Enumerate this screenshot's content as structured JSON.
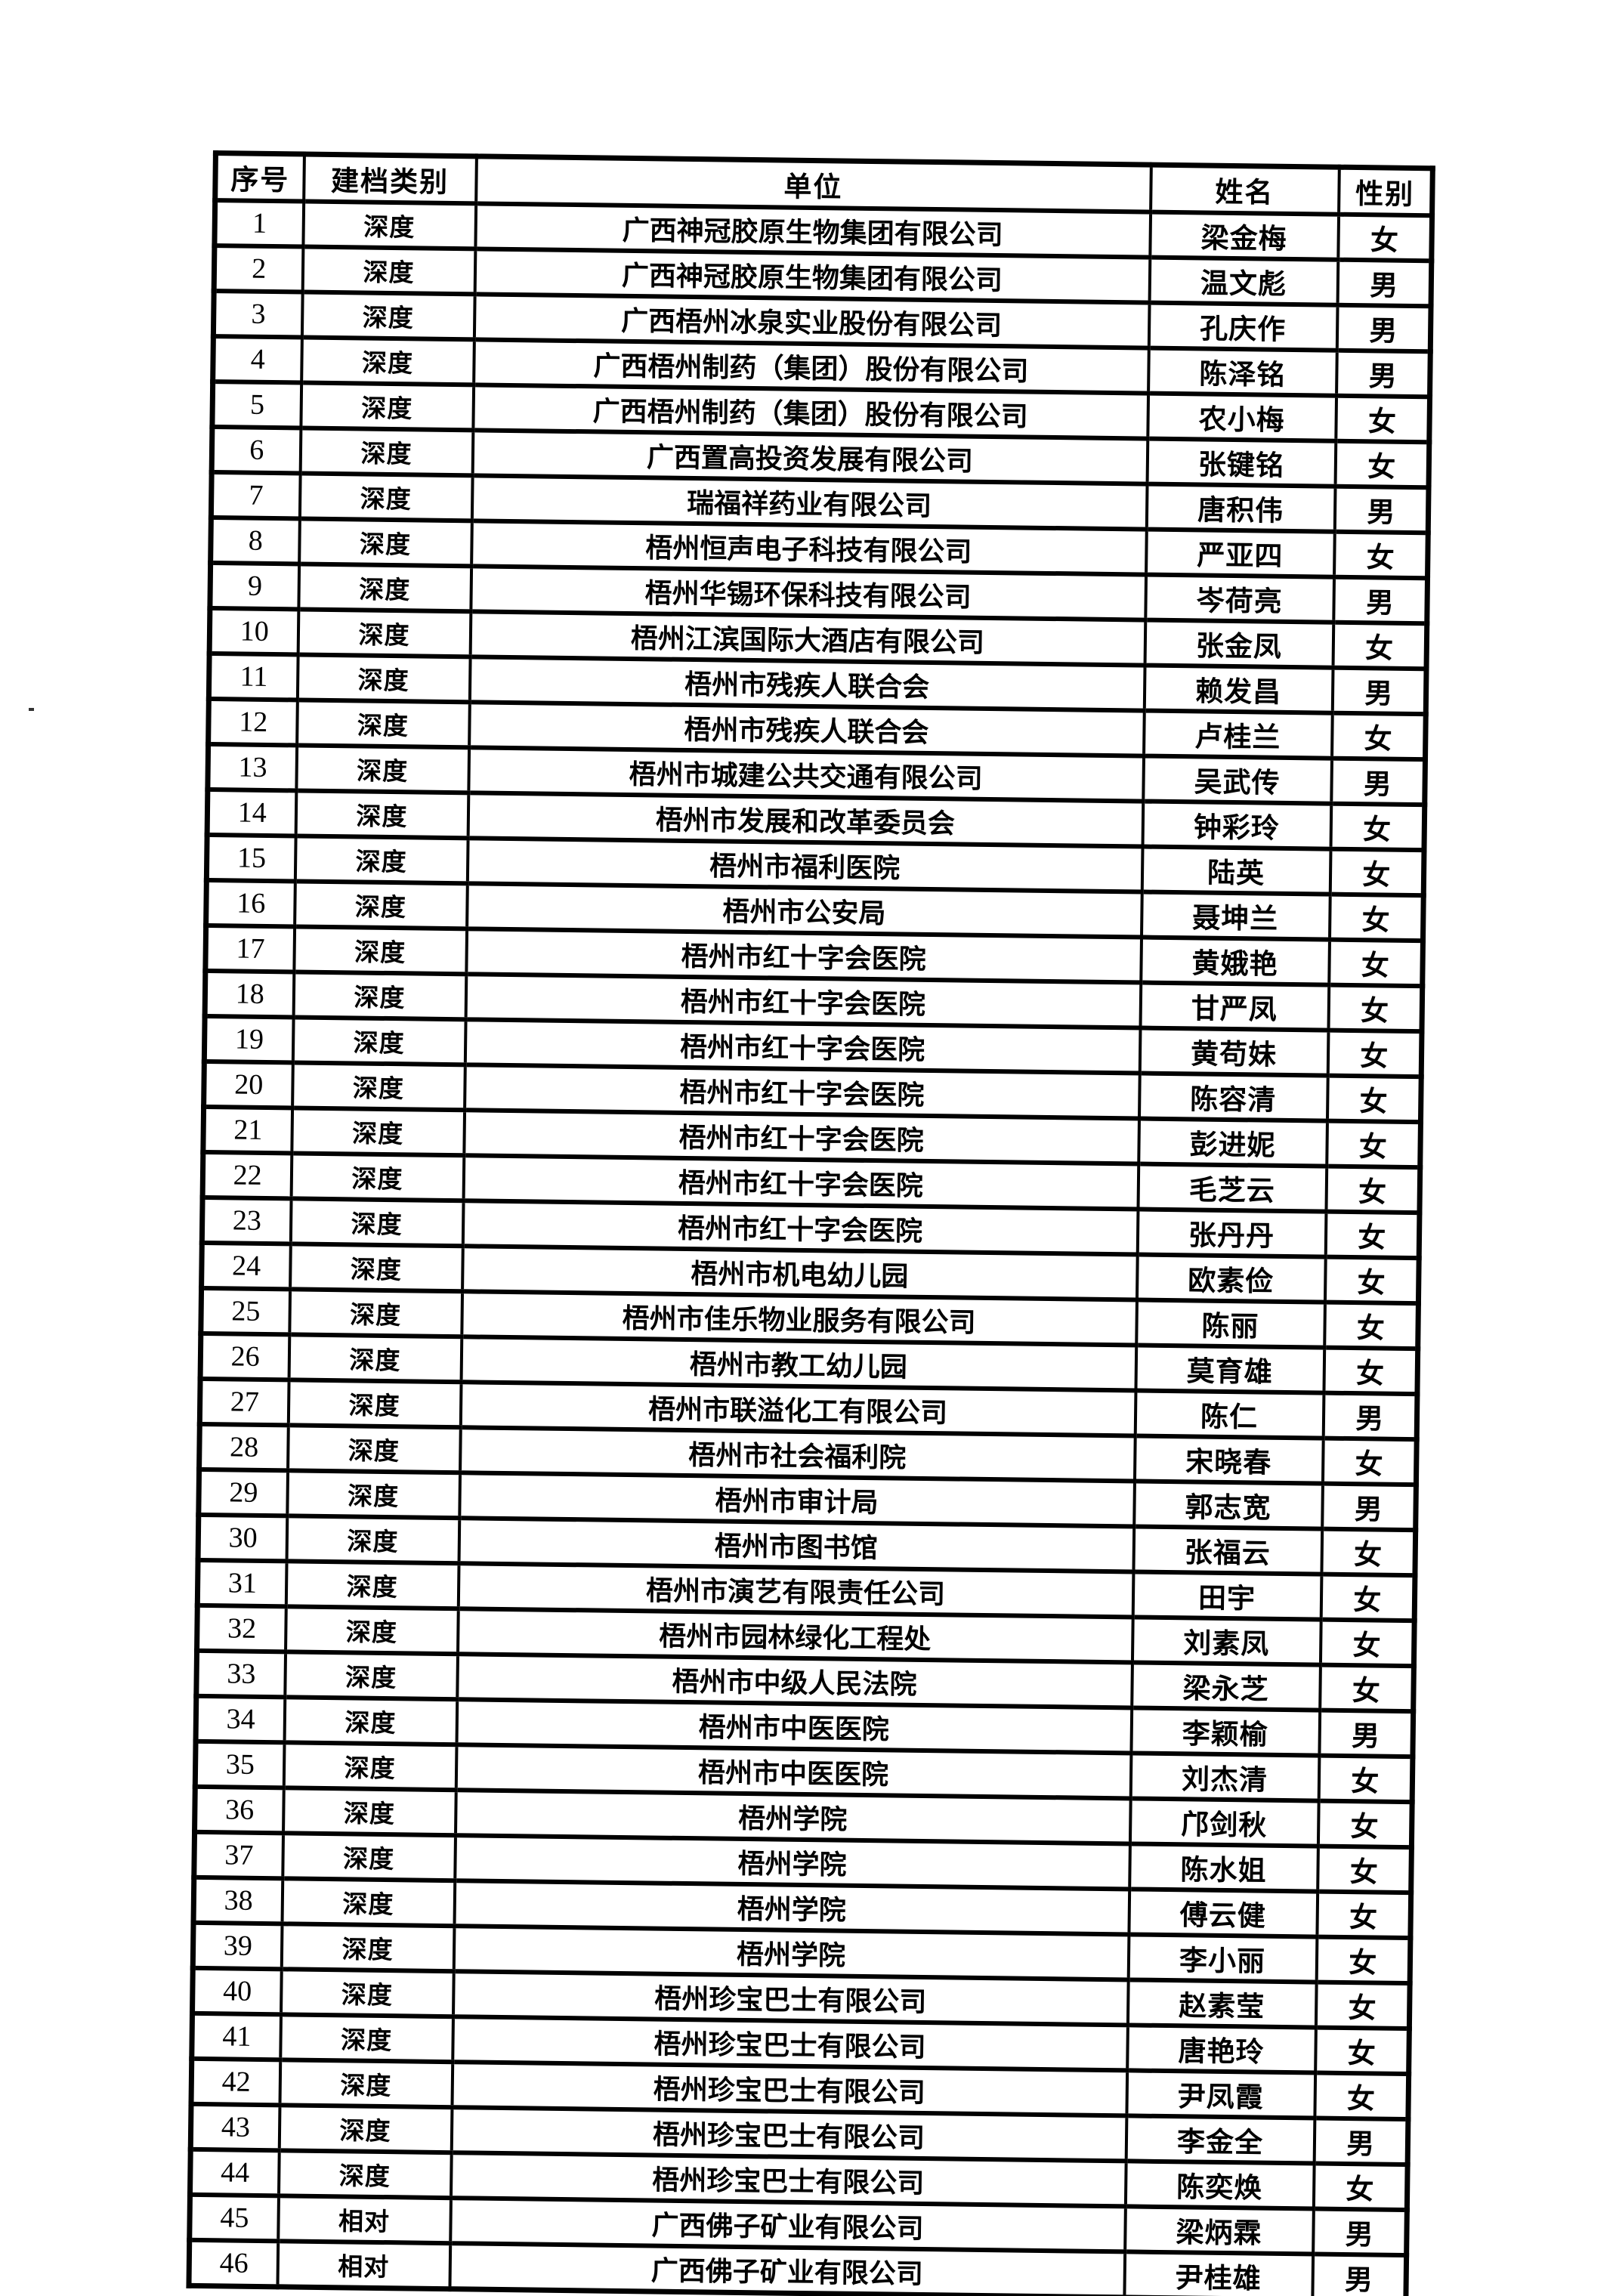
{
  "page": {
    "background": "#ffffff",
    "ink": "#000000"
  },
  "table": {
    "headers": [
      "序号",
      "建档类别",
      "单位",
      "姓名",
      "性别"
    ],
    "rows": [
      [
        "1",
        "深度",
        "广西神冠胶原生物集团有限公司",
        "梁金梅",
        "女"
      ],
      [
        "2",
        "深度",
        "广西神冠胶原生物集团有限公司",
        "温文彪",
        "男"
      ],
      [
        "3",
        "深度",
        "广西梧州冰泉实业股份有限公司",
        "孔庆作",
        "男"
      ],
      [
        "4",
        "深度",
        "广西梧州制药（集团）股份有限公司",
        "陈泽铭",
        "男"
      ],
      [
        "5",
        "深度",
        "广西梧州制药（集团）股份有限公司",
        "农小梅",
        "女"
      ],
      [
        "6",
        "深度",
        "广西置高投资发展有限公司",
        "张键铭",
        "女"
      ],
      [
        "7",
        "深度",
        "瑞福祥药业有限公司",
        "唐积伟",
        "男"
      ],
      [
        "8",
        "深度",
        "梧州恒声电子科技有限公司",
        "严亚四",
        "女"
      ],
      [
        "9",
        "深度",
        "梧州华锡环保科技有限公司",
        "岑荷亮",
        "男"
      ],
      [
        "10",
        "深度",
        "梧州江滨国际大酒店有限公司",
        "张金凤",
        "女"
      ],
      [
        "11",
        "深度",
        "梧州市残疾人联合会",
        "赖发昌",
        "男"
      ],
      [
        "12",
        "深度",
        "梧州市残疾人联合会",
        "卢桂兰",
        "女"
      ],
      [
        "13",
        "深度",
        "梧州市城建公共交通有限公司",
        "吴武传",
        "男"
      ],
      [
        "14",
        "深度",
        "梧州市发展和改革委员会",
        "钟彩玲",
        "女"
      ],
      [
        "15",
        "深度",
        "梧州市福利医院",
        "陆英",
        "女"
      ],
      [
        "16",
        "深度",
        "梧州市公安局",
        "聂坤兰",
        "女"
      ],
      [
        "17",
        "深度",
        "梧州市红十字会医院",
        "黄娥艳",
        "女"
      ],
      [
        "18",
        "深度",
        "梧州市红十字会医院",
        "甘严凤",
        "女"
      ],
      [
        "19",
        "深度",
        "梧州市红十字会医院",
        "黄苟妹",
        "女"
      ],
      [
        "20",
        "深度",
        "梧州市红十字会医院",
        "陈容清",
        "女"
      ],
      [
        "21",
        "深度",
        "梧州市红十字会医院",
        "彭进妮",
        "女"
      ],
      [
        "22",
        "深度",
        "梧州市红十字会医院",
        "毛芝云",
        "女"
      ],
      [
        "23",
        "深度",
        "梧州市红十字会医院",
        "张丹丹",
        "女"
      ],
      [
        "24",
        "深度",
        "梧州市机电幼儿园",
        "欧素俭",
        "女"
      ],
      [
        "25",
        "深度",
        "梧州市佳乐物业服务有限公司",
        "陈丽",
        "女"
      ],
      [
        "26",
        "深度",
        "梧州市教工幼儿园",
        "莫育雄",
        "女"
      ],
      [
        "27",
        "深度",
        "梧州市联溢化工有限公司",
        "陈仁",
        "男"
      ],
      [
        "28",
        "深度",
        "梧州市社会福利院",
        "宋晓春",
        "女"
      ],
      [
        "29",
        "深度",
        "梧州市审计局",
        "郭志宽",
        "男"
      ],
      [
        "30",
        "深度",
        "梧州市图书馆",
        "张福云",
        "女"
      ],
      [
        "31",
        "深度",
        "梧州市演艺有限责任公司",
        "田宇",
        "女"
      ],
      [
        "32",
        "深度",
        "梧州市园林绿化工程处",
        "刘素凤",
        "女"
      ],
      [
        "33",
        "深度",
        "梧州市中级人民法院",
        "梁永芝",
        "女"
      ],
      [
        "34",
        "深度",
        "梧州市中医医院",
        "李颖榆",
        "男"
      ],
      [
        "35",
        "深度",
        "梧州市中医医院",
        "刘杰清",
        "女"
      ],
      [
        "36",
        "深度",
        "梧州学院",
        "邝剑秋",
        "女"
      ],
      [
        "37",
        "深度",
        "梧州学院",
        "陈水姐",
        "女"
      ],
      [
        "38",
        "深度",
        "梧州学院",
        "傅云健",
        "女"
      ],
      [
        "39",
        "深度",
        "梧州学院",
        "李小丽",
        "女"
      ],
      [
        "40",
        "深度",
        "梧州珍宝巴士有限公司",
        "赵素莹",
        "女"
      ],
      [
        "41",
        "深度",
        "梧州珍宝巴士有限公司",
        "唐艳玲",
        "女"
      ],
      [
        "42",
        "深度",
        "梧州珍宝巴士有限公司",
        "尹凤霞",
        "女"
      ],
      [
        "43",
        "深度",
        "梧州珍宝巴士有限公司",
        "李金全",
        "男"
      ],
      [
        "44",
        "深度",
        "梧州珍宝巴士有限公司",
        "陈奕焕",
        "女"
      ],
      [
        "45",
        "相对",
        "广西佛子矿业有限公司",
        "梁炳霖",
        "男"
      ],
      [
        "46",
        "相对",
        "广西佛子矿业有限公司",
        "尹桂雄",
        "男"
      ]
    ]
  }
}
